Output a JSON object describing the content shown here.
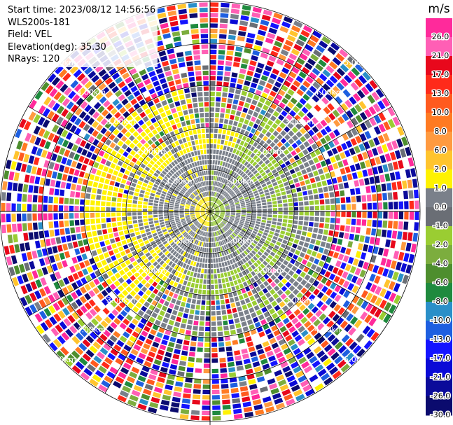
{
  "info": {
    "start_time": "Start time: 2023/08/12 14:56:56",
    "instrument": "WLS200s-181",
    "field": "Field: VEL",
    "elevation": "Elevation(deg): 35.30",
    "nrays": "NRays: 120"
  },
  "chart_data": {
    "type": "heatmap",
    "projection": "polar-ppi",
    "field": "VEL",
    "units": "m/s",
    "nrays": 120,
    "elevation_deg": 35.3,
    "range_ring_labels": [
      "1.00km",
      "2.00km",
      "3.00km",
      "4.00km",
      "5.00km"
    ],
    "range_rings_km": [
      1,
      2,
      3,
      4,
      5
    ],
    "max_range_km": 5.0,
    "colorbar": {
      "title": "m/s",
      "tick_labels": [
        "26.0",
        "21.0",
        "17.0",
        "13.0",
        "10.0",
        "8.0",
        "6.0",
        "2.0",
        "1.0",
        "0.0",
        "-1.0",
        "-2.0",
        "-4.0",
        "-6.0",
        "-8.0",
        "-10.0",
        "-13.0",
        "-17.0",
        "-21.0",
        "-26.0",
        "-30.0"
      ],
      "bins": [
        {
          "min": 26,
          "max": 30,
          "color": "#ff2a9b"
        },
        {
          "min": 21,
          "max": 26,
          "color": "#ff5fb5"
        },
        {
          "min": 17,
          "max": 21,
          "color": "#e8081c"
        },
        {
          "min": 13,
          "max": 17,
          "color": "#ff2a1a"
        },
        {
          "min": 10,
          "max": 13,
          "color": "#ff5a1e"
        },
        {
          "min": 8,
          "max": 10,
          "color": "#ff7a22"
        },
        {
          "min": 6,
          "max": 8,
          "color": "#ff9a40"
        },
        {
          "min": 2,
          "max": 6,
          "color": "#ffc42e"
        },
        {
          "min": 1,
          "max": 2,
          "color": "#fff200"
        },
        {
          "min": 0,
          "max": 1,
          "color": "#7a808a"
        },
        {
          "min": -1,
          "max": 0,
          "color": "#6a6e75"
        },
        {
          "min": -2,
          "max": -1,
          "color": "#9acd32"
        },
        {
          "min": -4,
          "max": -2,
          "color": "#7cad3e"
        },
        {
          "min": -6,
          "max": -4,
          "color": "#4e8e2e"
        },
        {
          "min": -8,
          "max": -6,
          "color": "#1f8a3e"
        },
        {
          "min": -10,
          "max": -8,
          "color": "#2a8fc8"
        },
        {
          "min": -13,
          "max": -10,
          "color": "#1e5fe0"
        },
        {
          "min": -17,
          "max": -13,
          "color": "#1414ff"
        },
        {
          "min": -21,
          "max": -17,
          "color": "#0a0ad6"
        },
        {
          "min": -26,
          "max": -21,
          "color": "#0b0b9a"
        },
        {
          "min": -30,
          "max": -26,
          "color": "#0b0b6e"
        }
      ],
      "range": [
        -30,
        30
      ]
    },
    "pattern_summary": {
      "inner_ring_km": [
        0.0,
        0.35
      ],
      "positive_sector_az_deg": [
        180,
        360
      ],
      "positive_value_ms": 1.5,
      "negative_sector_az_deg": [
        0,
        180
      ],
      "negative_value_ms": -1.5,
      "gray_band_km": [
        0.35,
        1.4
      ],
      "gray_value_ms": 0.0,
      "noise_beyond_km": 2.9
    }
  }
}
